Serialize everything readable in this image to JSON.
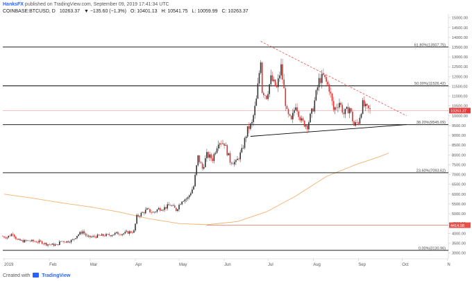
{
  "header": {
    "author": "HanksFX",
    "published_text": "published on TradingView.com, September 09, 2019 17:41:34 UTC",
    "symbol": "COINBASE:BTCUSD, D",
    "values": [
      "10263.37",
      "▼ −135.60 (−1.3%)",
      "O: 10401.13",
      "H: 10541.75",
      "L: 10059.99",
      "C: 10263.37"
    ]
  },
  "footer": {
    "created_with": "Created with",
    "brand": "TradingView"
  },
  "colors": {
    "up": "#333333",
    "down": "#e03030",
    "ma": "#f5b06c",
    "level": "#000000",
    "trend": "#e85050",
    "price_badge": "#e83a3a",
    "support_badge": "#e8504a"
  },
  "chart_data": {
    "type": "candlestick",
    "symbol": "COINBASE:BTCUSD",
    "timeframe": "D",
    "ylim": [
      2700,
      15200
    ],
    "y_ticks": [
      3000,
      3500,
      4000,
      4500,
      5000,
      5500,
      6000,
      6500,
      7000,
      7500,
      8000,
      8500,
      9000,
      9500,
      10000,
      10500,
      11000,
      11500,
      12000,
      12500,
      13000,
      13500,
      14000,
      14500,
      15000
    ],
    "x_ticks": [
      {
        "label": "2019",
        "date": "2019-01-01"
      },
      {
        "label": "Feb",
        "date": "2019-02-01"
      },
      {
        "label": "Mar",
        "date": "2019-03-01"
      },
      {
        "label": "Apr",
        "date": "2019-04-01"
      },
      {
        "label": "May",
        "date": "2019-05-01"
      },
      {
        "label": "Jun",
        "date": "2019-06-01"
      },
      {
        "label": "Jul",
        "date": "2019-07-01"
      },
      {
        "label": "Aug",
        "date": "2019-08-01"
      },
      {
        "label": "Sep",
        "date": "2019-09-01"
      },
      {
        "label": "Oct",
        "date": "2019-10-01"
      },
      {
        "label": "N",
        "date": "2019-11-01"
      }
    ],
    "close_series": [
      [
        "2018-12-30",
        3850
      ],
      [
        "2019-01-03",
        3800
      ],
      [
        "2019-01-07",
        4000
      ],
      [
        "2019-01-10",
        3650
      ],
      [
        "2019-01-14",
        3600
      ],
      [
        "2019-01-18",
        3620
      ],
      [
        "2019-01-22",
        3580
      ],
      [
        "2019-01-26",
        3560
      ],
      [
        "2019-01-30",
        3450
      ],
      [
        "2019-02-03",
        3420
      ],
      [
        "2019-02-06",
        3400
      ],
      [
        "2019-02-09",
        3600
      ],
      [
        "2019-02-13",
        3580
      ],
      [
        "2019-02-17",
        3650
      ],
      [
        "2019-02-20",
        3900
      ],
      [
        "2019-02-24",
        4100
      ],
      [
        "2019-02-27",
        3800
      ],
      [
        "2019-03-03",
        3820
      ],
      [
        "2019-03-07",
        3870
      ],
      [
        "2019-03-11",
        3900
      ],
      [
        "2019-03-15",
        3920
      ],
      [
        "2019-03-19",
        4000
      ],
      [
        "2019-03-23",
        3980
      ],
      [
        "2019-03-27",
        4050
      ],
      [
        "2019-03-31",
        4100
      ],
      [
        "2019-04-02",
        4850
      ],
      [
        "2019-04-05",
        5000
      ],
      [
        "2019-04-09",
        5200
      ],
      [
        "2019-04-13",
        5050
      ],
      [
        "2019-04-17",
        5250
      ],
      [
        "2019-04-21",
        5300
      ],
      [
        "2019-04-25",
        5450
      ],
      [
        "2019-04-29",
        5200
      ],
      [
        "2019-05-03",
        5700
      ],
      [
        "2019-05-07",
        5800
      ],
      [
        "2019-05-11",
        6400
      ],
      [
        "2019-05-14",
        7900
      ],
      [
        "2019-05-17",
        7300
      ],
      [
        "2019-05-20",
        8000
      ],
      [
        "2019-05-24",
        7800
      ],
      [
        "2019-05-28",
        8700
      ],
      [
        "2019-06-01",
        8600
      ],
      [
        "2019-06-05",
        7700
      ],
      [
        "2019-06-09",
        7600
      ],
      [
        "2019-06-13",
        8200
      ],
      [
        "2019-06-17",
        9300
      ],
      [
        "2019-06-20",
        9600
      ],
      [
        "2019-06-23",
        10800
      ],
      [
        "2019-06-26",
        12900
      ],
      [
        "2019-06-27",
        11300
      ],
      [
        "2019-06-30",
        11000
      ],
      [
        "2019-07-03",
        11900
      ],
      [
        "2019-07-07",
        11400
      ],
      [
        "2019-07-10",
        12500
      ],
      [
        "2019-07-14",
        10100
      ],
      [
        "2019-07-17",
        9700
      ],
      [
        "2019-07-20",
        10600
      ],
      [
        "2019-07-24",
        9700
      ],
      [
        "2019-07-28",
        9500
      ],
      [
        "2019-08-01",
        10400
      ],
      [
        "2019-08-05",
        11800
      ],
      [
        "2019-08-08",
        12000
      ],
      [
        "2019-08-12",
        11400
      ],
      [
        "2019-08-15",
        10300
      ],
      [
        "2019-08-19",
        10700
      ],
      [
        "2019-08-22",
        10100
      ],
      [
        "2019-08-26",
        10400
      ],
      [
        "2019-08-29",
        9500
      ],
      [
        "2019-09-01",
        9700
      ],
      [
        "2019-09-04",
        10600
      ],
      [
        "2019-09-06",
        10400
      ],
      [
        "2019-09-09",
        10263
      ]
    ],
    "moving_average": [
      [
        "2019-01-01",
        6000
      ],
      [
        "2019-01-20",
        5800
      ],
      [
        "2019-02-10",
        5550
      ],
      [
        "2019-03-01",
        5350
      ],
      [
        "2019-03-20",
        5100
      ],
      [
        "2019-04-10",
        4750
      ],
      [
        "2019-05-01",
        4500
      ],
      [
        "2019-05-20",
        4440
      ],
      [
        "2019-06-10",
        4600
      ],
      [
        "2019-06-30",
        5100
      ],
      [
        "2019-07-20",
        5900
      ],
      [
        "2019-08-10",
        6900
      ],
      [
        "2019-08-30",
        7500
      ],
      [
        "2019-09-15",
        7900
      ],
      [
        "2019-09-22",
        8100
      ]
    ],
    "fib_levels": [
      {
        "label": "61.80%(13507.75)",
        "value": 13507.75
      },
      {
        "label": "50.00%(11526.42)",
        "value": 11526.42
      },
      {
        "label": "38.20%(9545.09)",
        "value": 9545.09
      },
      {
        "label": "23.60%(7093.62)",
        "value": 7093.62
      },
      {
        "label": "0.00%(3130.96)",
        "value": 3130.96
      }
    ],
    "descending_trendline": [
      [
        "2019-06-26",
        13800
      ],
      [
        "2019-10-04",
        10000
      ]
    ],
    "ascending_trendline": [
      [
        "2019-06-19",
        8950
      ],
      [
        "2019-10-04",
        9550
      ]
    ],
    "support_line": {
      "value": 4414.98,
      "label": "4414.98",
      "from": "2019-05-20"
    },
    "last_price": {
      "value": 10263.37,
      "label": "10263.37"
    }
  }
}
